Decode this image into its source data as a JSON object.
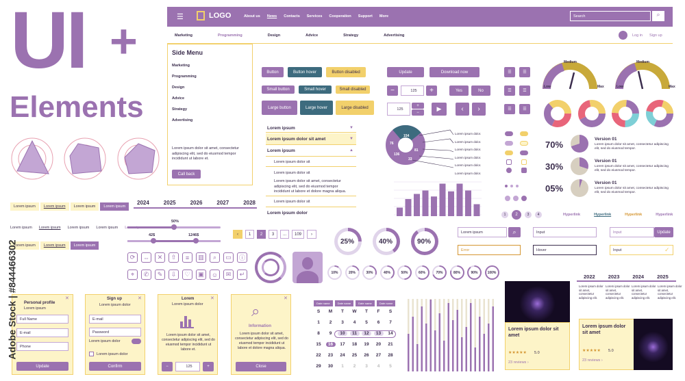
{
  "hero": {
    "title": "UI",
    "plus": "+",
    "subtitle": "Elements"
  },
  "navbar": {
    "logo": "LOGO",
    "links": [
      "About us",
      "News",
      "Contacts",
      "Services",
      "Cooperation",
      "Support",
      "More"
    ],
    "search_placeholder": "Search"
  },
  "subnav": {
    "links": [
      "Marketing",
      "Programming",
      "Design",
      "Advice",
      "Strategy",
      "Advertising"
    ],
    "login": "Log in",
    "signup": "Sign up"
  },
  "side_menu": {
    "title": "Side Menu",
    "items": [
      "Marketing",
      "Programming",
      "Design",
      "Advice",
      "Strategy",
      "Advertising"
    ],
    "text": "Lorem ipsum dolor sit amet, consectetur adipiscing elit, sed do eiusmod tempor incididunt ut labore et.",
    "button": "Call back"
  },
  "buttons": {
    "b1": "Button",
    "b2": "Button hover",
    "b3": "Button disabled",
    "s1": "Small button",
    "s2": "Small hover",
    "s3": "Small disabled",
    "l1": "Large button",
    "l2": "Large hover",
    "l3": "Large disabled"
  },
  "actions": {
    "update": "Update",
    "download": "Download now",
    "qty": "125",
    "yes": "Yes",
    "no": "No",
    "qty2": "125"
  },
  "accordion": {
    "a1": "Lorem ipsum",
    "a2": "Lorem ipsum dolor sit amet",
    "a3": "Lorem ipsum",
    "a4": "Lorem ipsum dolor sit",
    "a5": "Lorem ipsum dolor sit",
    "a6": "Lorem ipsum dolor sit amet, consectetur adipiscing elit, sed do eiusmod tempor incididunt ut labore et dolore magna aliqua.",
    "a7": "Lorem ipsum dolor sit",
    "a8": "Lorem ipsum dolor"
  },
  "donut": {
    "v1": "154",
    "v2": "76",
    "v3": "81",
    "v4": "136",
    "v5": "33",
    "labels": [
      "Lorem ipsum dolor.",
      "Lorem ipsum dolor.",
      "Lorem ipsum dolor.",
      "Lorem ipsum dolor.",
      "Lorem ipsum dolor.",
      "Lorem ipsum dolor."
    ]
  },
  "bar_chart": {
    "values": [
      10,
      20,
      26,
      30,
      23,
      38,
      29,
      38,
      30,
      14
    ]
  },
  "gauges": {
    "medium": "Medium",
    "low": "Low",
    "max": "Max"
  },
  "stats": [
    {
      "pct": "70%",
      "title": "Version 01",
      "text": "Lorem ipsum dolor sit amet, consectetur adipiscing elit, sed do eiusmod tempor."
    },
    {
      "pct": "30%",
      "title": "Version 01",
      "text": "Lorem ipsum dolor sit amet, consectetur adipiscing elit, sed do eiusmod tempor."
    },
    {
      "pct": "05%",
      "title": "Version 01",
      "text": "Lorem ipsum dolor sit amet, consectetur adipiscing elit, sed do eiusmod tempor."
    }
  ],
  "pagination_dots": [
    "1",
    "2",
    "3",
    "4"
  ],
  "hyperlinks": [
    "Hyperlink",
    "Hyperlink",
    "Hyperlink",
    "Hyperlink"
  ],
  "breadcrumbs": {
    "item": "Lorem ipsum"
  },
  "timeline": {
    "years": [
      "2024",
      "2025",
      "2026",
      "2027",
      "2028"
    ]
  },
  "sliders": {
    "pct": "50%",
    "min": "42$",
    "max": "1246$"
  },
  "pagination": {
    "pages": [
      "1",
      "2",
      "3",
      "...",
      "109"
    ]
  },
  "progress": {
    "p1": "25%",
    "p2": "40%",
    "p3": "90%",
    "row": [
      "10%",
      "20%",
      "30%",
      "40%",
      "50%",
      "60%",
      "70%",
      "80%",
      "90%",
      "100%"
    ]
  },
  "inputs": {
    "search": "Lorem ipsum",
    "input1": "Input",
    "update": "Update",
    "error": "Error",
    "hover": "Hover",
    "input2": "Input",
    "input3": "Input"
  },
  "forms": {
    "f1": {
      "title": "Personal profile",
      "sub": "Lorem ipsum",
      "fields": [
        "Full Name",
        "E-mail",
        "Phone"
      ],
      "btn": "Update"
    },
    "f2": {
      "title": "Sign up",
      "sub": "Lorem ipsum dolor",
      "fields": [
        "E-mail",
        "Password"
      ],
      "toggle": "Lorem ipsum dolor",
      "check": "Lorem ipsum dolor",
      "btn": "Confirm"
    },
    "f3": {
      "title": "Lorem",
      "sub": "Lorem ipsum dolor",
      "text": "Lorem ipsum dolor sit amet, consectetur adipiscing elit, sed do eiusmod tempor incididunt ut labore et.",
      "qty": "125"
    },
    "f4": {
      "title": "Information",
      "text": "Lorem ipsum dolor sit amet, consectetur adipiscing elit, sed do eiusmod tempor incididunt ut labore et dolore magna aliqua.",
      "btn": "Close"
    }
  },
  "calendar": {
    "head": [
      "Date name",
      "Date name",
      "Date name",
      "Date name"
    ],
    "days": [
      "S",
      "M",
      "T",
      "W",
      "T",
      "F",
      "S"
    ],
    "rows": [
      [
        "1",
        "2",
        "3",
        "4",
        "5",
        "6",
        "7"
      ],
      [
        "8",
        "9",
        "10",
        "11",
        "12",
        "13",
        "14"
      ],
      [
        "15",
        "16",
        "17",
        "18",
        "19",
        "20",
        "21"
      ],
      [
        "22",
        "23",
        "24",
        "25",
        "26",
        "27",
        "28"
      ],
      [
        "29",
        "30",
        "1",
        "2",
        "3",
        "4",
        "5"
      ]
    ]
  },
  "products": [
    {
      "title": "Lorem ipsum dolor sit amet",
      "rating": "5.0",
      "reviews": "23 reviews ›"
    },
    {
      "title": "Lorem ipsum dolor sit amet",
      "rating": "5.0",
      "reviews": "23 reviews ›"
    }
  ],
  "timeline2": {
    "years": [
      "2022",
      "2023",
      "2024",
      "2025"
    ],
    "text": "Lorem ipsum dolor sit amet, consectetur adipiscing elit."
  },
  "watermark": "Adobe Stock | #844466302",
  "colors": {
    "purple": "#9b72b0",
    "yellow": "#f2d06b",
    "teal": "#3d6b7e",
    "cream": "#fdf4c8"
  }
}
